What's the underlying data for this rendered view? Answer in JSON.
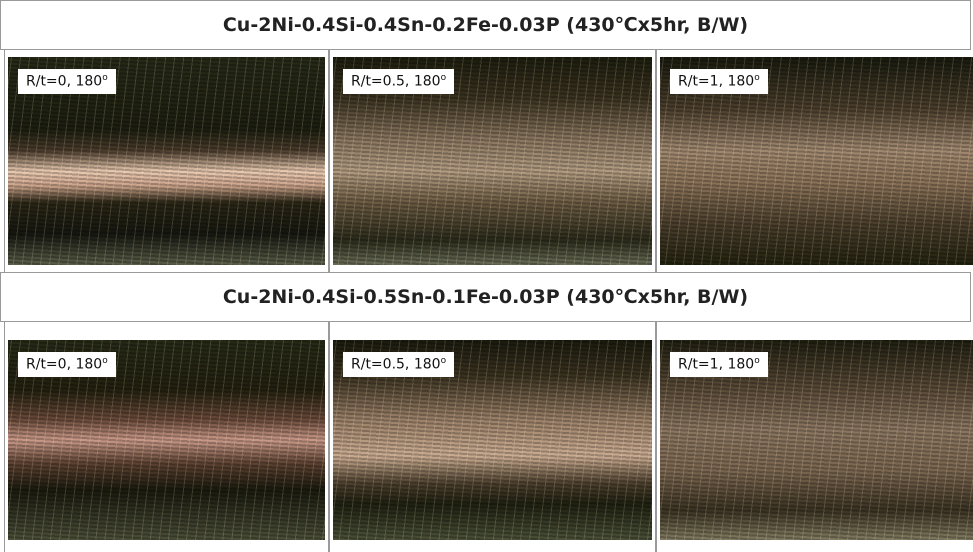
{
  "rows": [
    {
      "title": "Cu-2Ni-0.4Si-0.4Sn-0.2Fe-0.03P  (430℃x5hr,  B/W)",
      "panels": [
        {
          "label": "R/t=0, 180",
          "sup": "o"
        },
        {
          "label": "R/t=0.5, 180",
          "sup": "o"
        },
        {
          "label": "R/t=1, 180",
          "sup": "o"
        }
      ]
    },
    {
      "title": "Cu-2Ni-0.4Si-0.5Sn-0.1Fe-0.03P  (430℃x5hr,  B/W)",
      "panels": [
        {
          "label": "R/t=0, 180",
          "sup": "o"
        },
        {
          "label": "R/t=0.5, 180",
          "sup": "o"
        },
        {
          "label": "R/t=1, 180",
          "sup": "o"
        }
      ]
    }
  ]
}
